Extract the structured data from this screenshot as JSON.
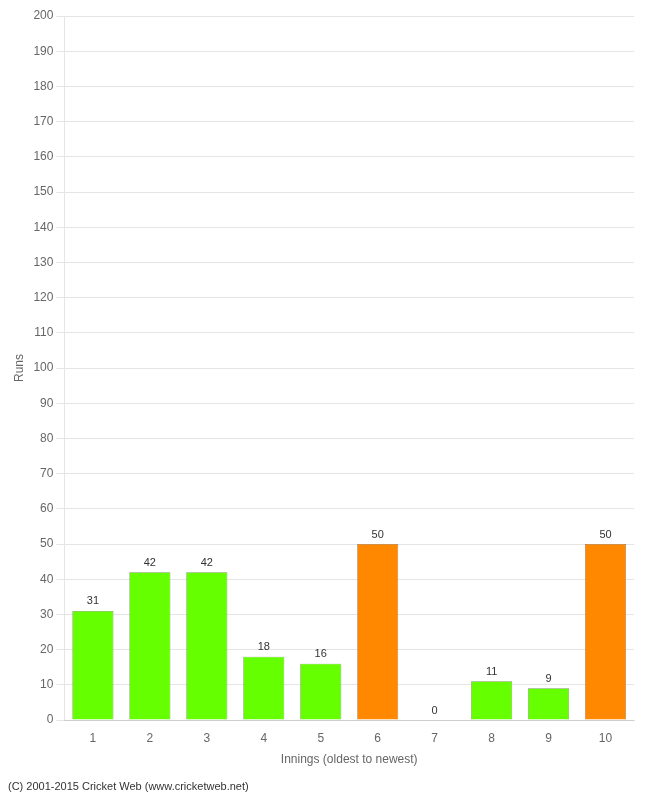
{
  "chart_data": {
    "type": "bar",
    "categories": [
      "1",
      "2",
      "3",
      "4",
      "5",
      "6",
      "7",
      "8",
      "9",
      "10"
    ],
    "values": [
      31,
      42,
      42,
      18,
      16,
      50,
      0,
      11,
      9,
      50
    ],
    "colors": [
      "#66ff00",
      "#66ff00",
      "#66ff00",
      "#66ff00",
      "#66ff00",
      "#ff8800",
      "#66ff00",
      "#66ff00",
      "#66ff00",
      "#ff8800"
    ],
    "xlabel": "Innings (oldest to newest)",
    "ylabel": "Runs",
    "ylim": [
      0,
      200
    ],
    "yticks": [
      0,
      10,
      20,
      30,
      40,
      50,
      60,
      70,
      80,
      90,
      100,
      110,
      120,
      130,
      140,
      150,
      160,
      170,
      180,
      190,
      200
    ],
    "grid": true,
    "data_labels": true,
    "annotations": [
      "(C) 2001-2015 Cricket Web (www.cricketweb.net)"
    ]
  }
}
